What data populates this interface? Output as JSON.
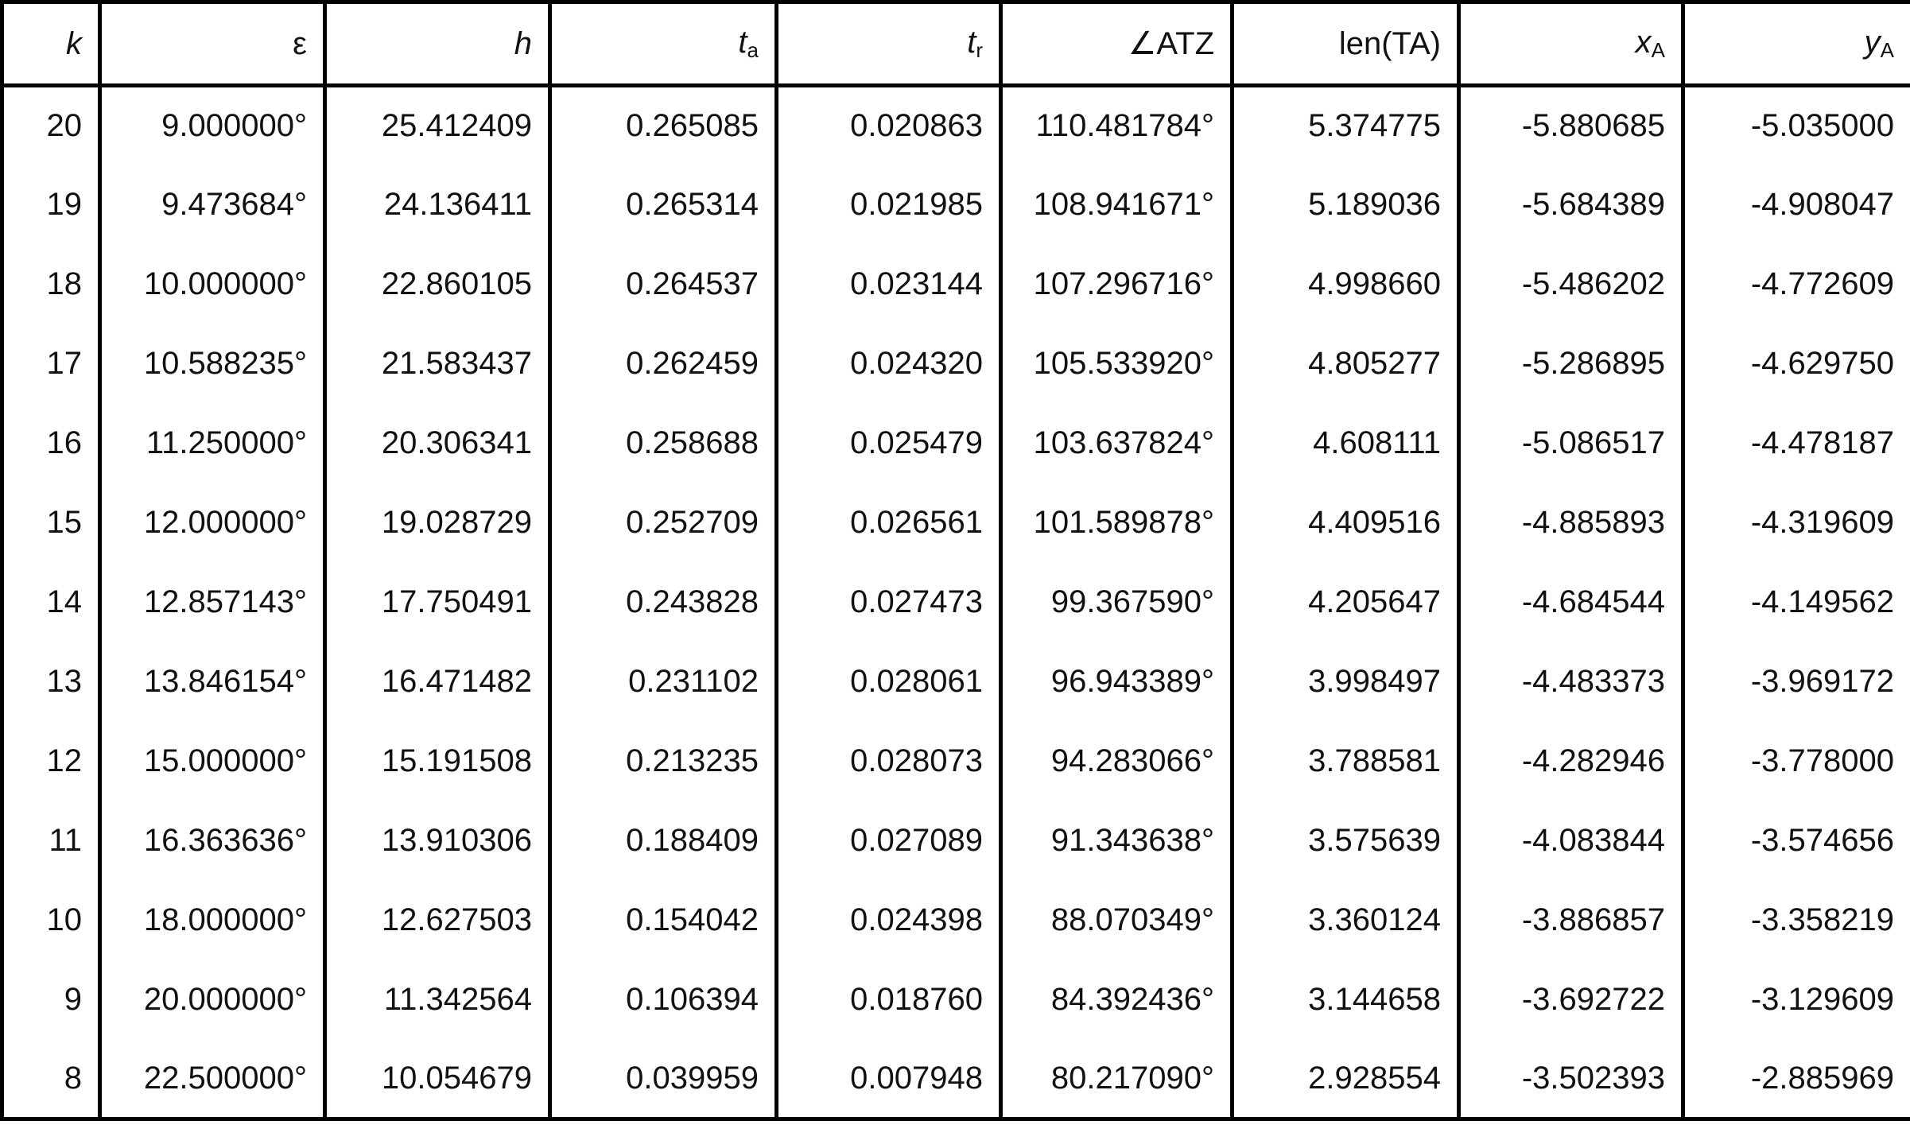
{
  "table": {
    "header": [
      {
        "text": "k"
      },
      {
        "text": "ε"
      },
      {
        "text": "h"
      },
      {
        "text": "t",
        "sub": "a"
      },
      {
        "text": "t",
        "sub": "r"
      },
      {
        "text": "∠ATZ"
      },
      {
        "text": "len(TA)"
      },
      {
        "text": "x",
        "sub": "A"
      },
      {
        "text": "y",
        "sub": "A"
      }
    ],
    "rows": [
      [
        "20",
        "9.000000°",
        "25.412409",
        "0.265085",
        "0.020863",
        "110.481784°",
        "5.374775",
        "-5.880685",
        "-5.035000"
      ],
      [
        "19",
        "9.473684°",
        "24.136411",
        "0.265314",
        "0.021985",
        "108.941671°",
        "5.189036",
        "-5.684389",
        "-4.908047"
      ],
      [
        "18",
        "10.000000°",
        "22.860105",
        "0.264537",
        "0.023144",
        "107.296716°",
        "4.998660",
        "-5.486202",
        "-4.772609"
      ],
      [
        "17",
        "10.588235°",
        "21.583437",
        "0.262459",
        "0.024320",
        "105.533920°",
        "4.805277",
        "-5.286895",
        "-4.629750"
      ],
      [
        "16",
        "11.250000°",
        "20.306341",
        "0.258688",
        "0.025479",
        "103.637824°",
        "4.608111",
        "-5.086517",
        "-4.478187"
      ],
      [
        "15",
        "12.000000°",
        "19.028729",
        "0.252709",
        "0.026561",
        "101.589878°",
        "4.409516",
        "-4.885893",
        "-4.319609"
      ],
      [
        "14",
        "12.857143°",
        "17.750491",
        "0.243828",
        "0.027473",
        "99.367590°",
        "4.205647",
        "-4.684544",
        "-4.149562"
      ],
      [
        "13",
        "13.846154°",
        "16.471482",
        "0.231102",
        "0.028061",
        "96.943389°",
        "3.998497",
        "-4.483373",
        "-3.969172"
      ],
      [
        "12",
        "15.000000°",
        "15.191508",
        "0.213235",
        "0.028073",
        "94.283066°",
        "3.788581",
        "-4.282946",
        "-3.778000"
      ],
      [
        "11",
        "16.363636°",
        "13.910306",
        "0.188409",
        "0.027089",
        "91.343638°",
        "3.575639",
        "-4.083844",
        "-3.574656"
      ],
      [
        "10",
        "18.000000°",
        "12.627503",
        "0.154042",
        "0.024398",
        "88.070349°",
        "3.360124",
        "-3.886857",
        "-3.358219"
      ],
      [
        "9",
        "20.000000°",
        "11.342564",
        "0.106394",
        "0.018760",
        "84.392436°",
        "3.144658",
        "-3.692722",
        "-3.129609"
      ],
      [
        "8",
        "22.500000°",
        "10.054679",
        "0.039959",
        "0.007948",
        "80.217090°",
        "2.928554",
        "-3.502393",
        "-2.885969"
      ]
    ]
  }
}
